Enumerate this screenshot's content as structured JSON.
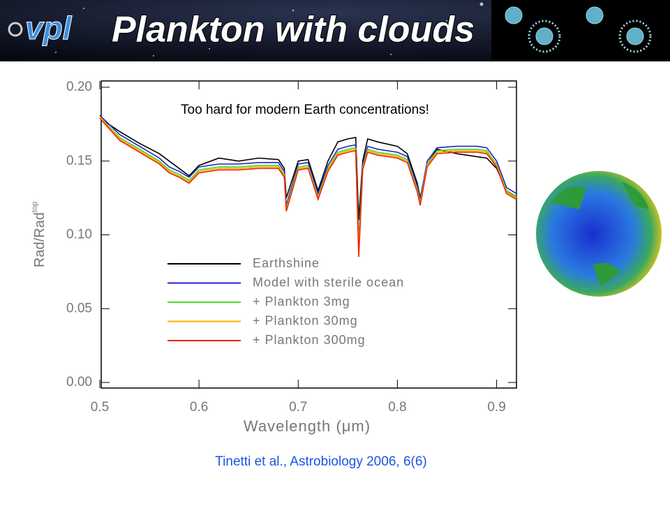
{
  "header": {
    "logo": "vpl",
    "title": "Plankton with clouds"
  },
  "citation": "Tinetti et al., Astrobiology 2006, 6(6)",
  "chart_data": {
    "type": "line",
    "annotation": "Too hard for modern Earth concentrations!",
    "x_label": "Wavelength (μm)",
    "y_label": "Rad/Rad",
    "y_label_sup": "top",
    "xlim": [
      0.5,
      0.92
    ],
    "ylim": [
      0,
      0.2
    ],
    "xticks": [
      0.5,
      0.6,
      0.7,
      0.8,
      0.9
    ],
    "yticks": [
      {
        "value": 0,
        "label": "0.00"
      },
      {
        "value": 0.05,
        "label": "0.05"
      },
      {
        "value": 0.1,
        "label": "0.10"
      },
      {
        "value": 0.15,
        "label": "0.15"
      },
      {
        "value": 0.2,
        "label": "0.20"
      }
    ],
    "x": [
      0.5,
      0.52,
      0.54,
      0.56,
      0.57,
      0.58,
      0.59,
      0.6,
      0.62,
      0.64,
      0.66,
      0.68,
      0.686,
      0.688,
      0.7,
      0.71,
      0.72,
      0.73,
      0.74,
      0.75,
      0.758,
      0.761,
      0.765,
      0.77,
      0.78,
      0.8,
      0.81,
      0.82,
      0.823,
      0.83,
      0.84,
      0.86,
      0.88,
      0.89,
      0.9,
      0.91,
      0.92
    ],
    "series": [
      {
        "name": "Earthshine",
        "color": "#000000",
        "values": [
          0.179,
          0.17,
          0.162,
          0.155,
          0.15,
          0.145,
          0.14,
          0.147,
          0.152,
          0.15,
          0.152,
          0.151,
          0.145,
          0.125,
          0.15,
          0.151,
          0.13,
          0.15,
          0.163,
          0.165,
          0.166,
          0.11,
          0.15,
          0.165,
          0.163,
          0.16,
          0.155,
          0.135,
          0.125,
          0.148,
          0.158,
          0.155,
          0.153,
          0.152,
          0.145,
          0.13,
          0.125
        ]
      },
      {
        "name": "Model with sterile ocean",
        "color": "#2222cc",
        "values": [
          0.181,
          0.168,
          0.16,
          0.152,
          0.146,
          0.143,
          0.139,
          0.146,
          0.148,
          0.148,
          0.149,
          0.149,
          0.143,
          0.12,
          0.148,
          0.149,
          0.128,
          0.147,
          0.158,
          0.16,
          0.161,
          0.095,
          0.148,
          0.16,
          0.158,
          0.156,
          0.153,
          0.133,
          0.124,
          0.15,
          0.159,
          0.16,
          0.16,
          0.159,
          0.15,
          0.132,
          0.128
        ]
      },
      {
        "name": "+ Plankton 3mg",
        "color": "#44dd22",
        "values": [
          0.18,
          0.166,
          0.158,
          0.15,
          0.144,
          0.141,
          0.137,
          0.144,
          0.146,
          0.146,
          0.147,
          0.147,
          0.141,
          0.118,
          0.146,
          0.147,
          0.126,
          0.145,
          0.156,
          0.158,
          0.159,
          0.093,
          0.146,
          0.158,
          0.156,
          0.154,
          0.151,
          0.131,
          0.122,
          0.148,
          0.157,
          0.158,
          0.158,
          0.157,
          0.148,
          0.13,
          0.126
        ]
      },
      {
        "name": "+ Plankton 30mg",
        "color": "#ffaa00",
        "values": [
          0.18,
          0.165,
          0.157,
          0.149,
          0.143,
          0.14,
          0.136,
          0.143,
          0.145,
          0.145,
          0.146,
          0.146,
          0.14,
          0.117,
          0.145,
          0.146,
          0.125,
          0.144,
          0.155,
          0.157,
          0.158,
          0.09,
          0.145,
          0.157,
          0.155,
          0.153,
          0.15,
          0.13,
          0.121,
          0.147,
          0.156,
          0.157,
          0.157,
          0.156,
          0.147,
          0.129,
          0.125
        ]
      },
      {
        "name": "+ Plankton 300mg",
        "color": "#ee2200",
        "values": [
          0.179,
          0.164,
          0.156,
          0.148,
          0.142,
          0.139,
          0.135,
          0.142,
          0.144,
          0.144,
          0.145,
          0.145,
          0.139,
          0.116,
          0.144,
          0.145,
          0.124,
          0.143,
          0.154,
          0.156,
          0.157,
          0.085,
          0.144,
          0.156,
          0.154,
          0.152,
          0.149,
          0.129,
          0.12,
          0.146,
          0.155,
          0.156,
          0.156,
          0.155,
          0.146,
          0.128,
          0.124
        ]
      }
    ]
  }
}
